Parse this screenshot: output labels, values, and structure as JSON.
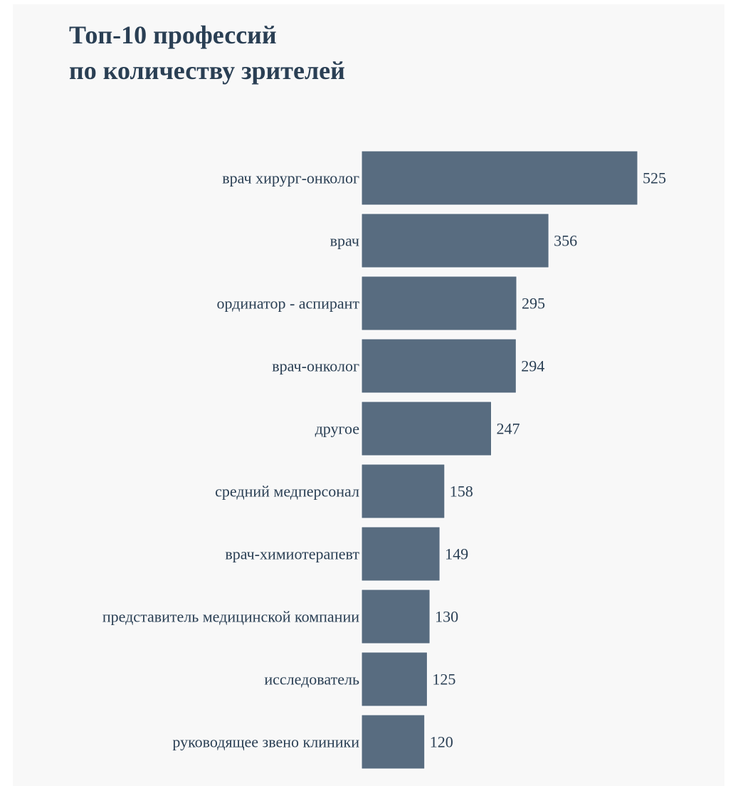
{
  "chart_data": {
    "type": "bar",
    "orientation": "horizontal",
    "title_lines": [
      "Топ-10 профессий",
      "по количеству зрителей"
    ],
    "categories": [
      "врач хирург-онколог",
      "врач",
      "ординатор - аспирант",
      "врач-онколог",
      "другое",
      "средний медперсонал",
      "врач-химиотерапевт",
      "представитель медицинской компании",
      "исследователь",
      "руководящее звено клиники"
    ],
    "values": [
      525,
      356,
      295,
      294,
      247,
      158,
      149,
      130,
      125,
      120
    ],
    "xlabel": "",
    "ylabel": "",
    "xlim": [
      0,
      525
    ],
    "grid": false,
    "legend": "none",
    "bar_color": "#586c80",
    "text_color": "#2a3f54",
    "background_color": "#f8f8f8"
  }
}
